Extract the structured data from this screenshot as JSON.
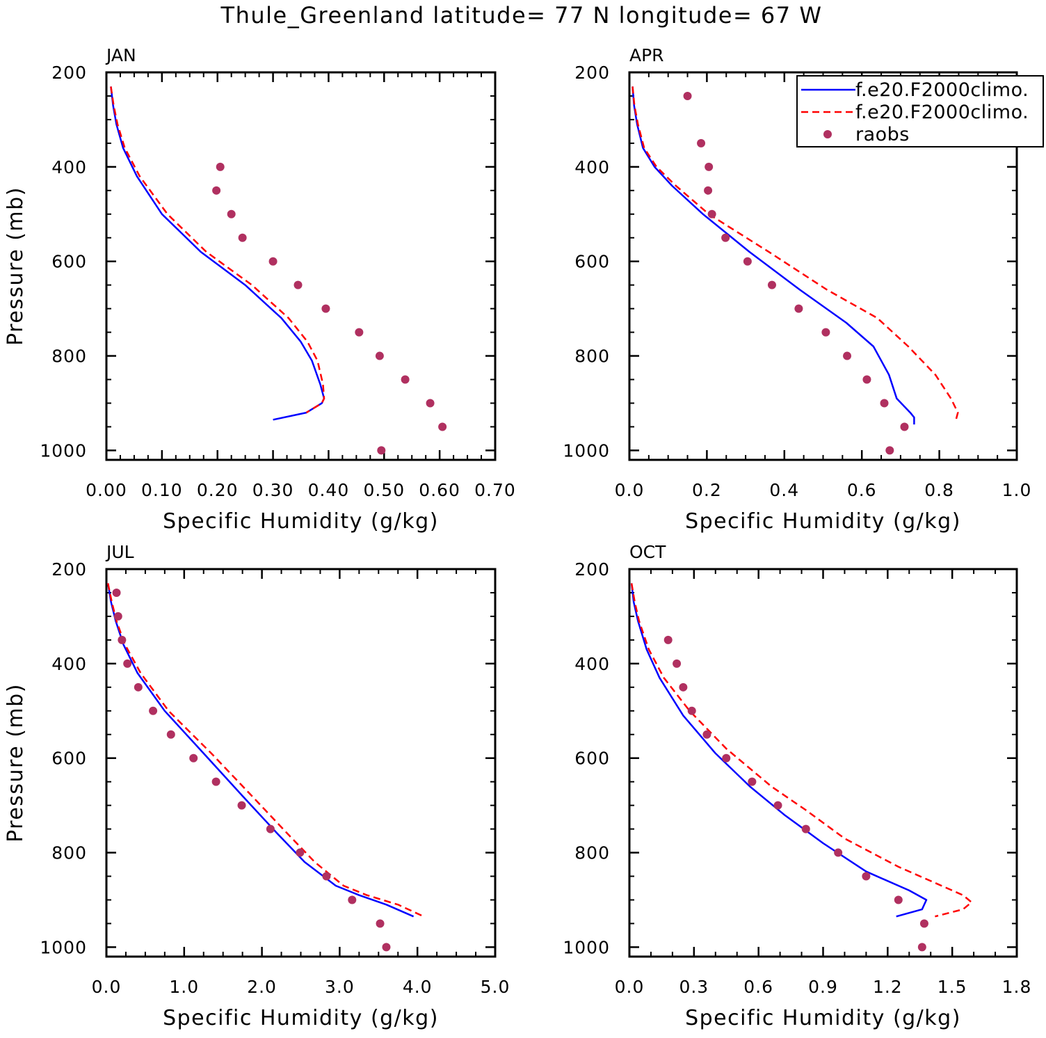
{
  "title": "Thule_Greenland  latitude= 77 N longitude= 67 W",
  "colors": {
    "model_a": "#0000ff",
    "model_b": "#ff0000",
    "raobs": "#b03060"
  },
  "legend": {
    "entries": [
      {
        "label": "f.e20.F2000climo.",
        "style": "solid",
        "color": "#0000ff"
      },
      {
        "label": "f.e20.F2000climo.",
        "style": "dashed",
        "color": "#ff0000"
      },
      {
        "label": "raobs",
        "style": "dots",
        "color": "#b03060"
      }
    ]
  },
  "chart_data": [
    {
      "type": "line",
      "title": "JAN",
      "xlabel": "Specific Humidity (g/kg)",
      "ylabel": "Pressure (mb)",
      "xlim": [
        0,
        0.7
      ],
      "ylim": [
        1020,
        200
      ],
      "xticks": [
        0,
        0.1,
        0.2,
        0.3,
        0.4,
        0.5,
        0.6,
        0.7
      ],
      "xtick_labels": [
        "0.00",
        "0.10",
        "0.20",
        "0.30",
        "0.40",
        "0.50",
        "0.60",
        "0.70"
      ],
      "xminor": 0.025,
      "yticks": [
        200,
        400,
        600,
        800,
        1000
      ],
      "ytick_labels": [
        "200",
        "400",
        "600",
        "800",
        "1000"
      ],
      "series": [
        {
          "name": "f.e20.F2000climo.",
          "style": "solid",
          "color": "#0000ff",
          "points": [
            [
              0.008,
              230
            ],
            [
              0.012,
              270
            ],
            [
              0.018,
              310
            ],
            [
              0.03,
              360
            ],
            [
              0.055,
              420
            ],
            [
              0.1,
              500
            ],
            [
              0.17,
              580
            ],
            [
              0.25,
              650
            ],
            [
              0.315,
              720
            ],
            [
              0.35,
              770
            ],
            [
              0.37,
              810
            ],
            [
              0.385,
              860
            ],
            [
              0.392,
              890
            ],
            [
              0.388,
              900
            ],
            [
              0.36,
              920
            ],
            [
              0.3,
              935
            ]
          ]
        },
        {
          "name": "f.e20.F2000climo.",
          "style": "dashed",
          "color": "#ff0000",
          "points": [
            [
              0.008,
              230
            ],
            [
              0.013,
              270
            ],
            [
              0.02,
              310
            ],
            [
              0.033,
              360
            ],
            [
              0.06,
              420
            ],
            [
              0.11,
              500
            ],
            [
              0.18,
              580
            ],
            [
              0.262,
              650
            ],
            [
              0.328,
              720
            ],
            [
              0.362,
              770
            ],
            [
              0.38,
              810
            ],
            [
              0.39,
              860
            ],
            [
              0.392,
              890
            ],
            [
              0.388,
              900
            ],
            [
              0.36,
              920
            ]
          ]
        },
        {
          "name": "raobs",
          "style": "dots",
          "color": "#b03060",
          "points": [
            [
              0.205,
              400
            ],
            [
              0.198,
              450
            ],
            [
              0.225,
              500
            ],
            [
              0.245,
              550
            ],
            [
              0.3,
              600
            ],
            [
              0.345,
              650
            ],
            [
              0.395,
              700
            ],
            [
              0.455,
              750
            ],
            [
              0.492,
              800
            ],
            [
              0.538,
              850
            ],
            [
              0.583,
              900
            ],
            [
              0.605,
              950
            ],
            [
              0.495,
              1000
            ]
          ]
        }
      ]
    },
    {
      "type": "line",
      "title": "APR",
      "xlabel": "Specific Humidity (g/kg)",
      "ylabel": "",
      "xlim": [
        0,
        1.0
      ],
      "ylim": [
        1020,
        200
      ],
      "xticks": [
        0,
        0.2,
        0.4,
        0.6,
        0.8,
        1.0
      ],
      "xtick_labels": [
        "0.0",
        "0.2",
        "0.4",
        "0.6",
        "0.8",
        "1.0"
      ],
      "xminor": 0.05,
      "yticks": [
        200,
        400,
        600,
        800,
        1000
      ],
      "ytick_labels": [
        "200",
        "400",
        "600",
        "800",
        "1000"
      ],
      "series": [
        {
          "name": "f.e20.F2000climo.",
          "style": "solid",
          "color": "#0000ff",
          "points": [
            [
              0.008,
              230
            ],
            [
              0.012,
              270
            ],
            [
              0.02,
              310
            ],
            [
              0.035,
              360
            ],
            [
              0.065,
              400
            ],
            [
              0.11,
              440
            ],
            [
              0.19,
              500
            ],
            [
              0.31,
              580
            ],
            [
              0.44,
              660
            ],
            [
              0.56,
              730
            ],
            [
              0.63,
              780
            ],
            [
              0.67,
              840
            ],
            [
              0.69,
              890
            ],
            [
              0.725,
              920
            ],
            [
              0.735,
              930
            ],
            [
              0.735,
              945
            ]
          ]
        },
        {
          "name": "f.e20.F2000climo.",
          "style": "dashed",
          "color": "#ff0000",
          "points": [
            [
              0.008,
              230
            ],
            [
              0.013,
              270
            ],
            [
              0.022,
              310
            ],
            [
              0.038,
              360
            ],
            [
              0.07,
              400
            ],
            [
              0.12,
              440
            ],
            [
              0.205,
              500
            ],
            [
              0.36,
              580
            ],
            [
              0.51,
              660
            ],
            [
              0.64,
              720
            ],
            [
              0.72,
              780
            ],
            [
              0.79,
              840
            ],
            [
              0.83,
              890
            ],
            [
              0.848,
              920
            ],
            [
              0.843,
              935
            ]
          ]
        },
        {
          "name": "raobs",
          "style": "dots",
          "color": "#b03060",
          "points": [
            [
              0.15,
              250
            ],
            [
              0.185,
              350
            ],
            [
              0.205,
              400
            ],
            [
              0.203,
              450
            ],
            [
              0.213,
              500
            ],
            [
              0.248,
              550
            ],
            [
              0.305,
              600
            ],
            [
              0.368,
              650
            ],
            [
              0.437,
              700
            ],
            [
              0.507,
              750
            ],
            [
              0.562,
              800
            ],
            [
              0.613,
              850
            ],
            [
              0.658,
              900
            ],
            [
              0.71,
              950
            ],
            [
              0.672,
              1000
            ]
          ]
        }
      ]
    },
    {
      "type": "line",
      "title": "JUL",
      "xlabel": "Specific Humidity (g/kg)",
      "ylabel": "Pressure (mb)",
      "xlim": [
        0,
        5.0
      ],
      "ylim": [
        1020,
        200
      ],
      "xticks": [
        0,
        1,
        2,
        3,
        4,
        5
      ],
      "xtick_labels": [
        "0.0",
        "1.0",
        "2.0",
        "3.0",
        "4.0",
        "5.0"
      ],
      "xminor": 0.25,
      "yticks": [
        200,
        400,
        600,
        800,
        1000
      ],
      "ytick_labels": [
        "200",
        "400",
        "600",
        "800",
        "1000"
      ],
      "series": [
        {
          "name": "f.e20.F2000climo.",
          "style": "solid",
          "color": "#0000ff",
          "points": [
            [
              0.02,
              230
            ],
            [
              0.06,
              270
            ],
            [
              0.12,
              310
            ],
            [
              0.22,
              360
            ],
            [
              0.4,
              420
            ],
            [
              0.75,
              500
            ],
            [
              1.25,
              590
            ],
            [
              1.75,
              680
            ],
            [
              2.2,
              760
            ],
            [
              2.55,
              820
            ],
            [
              2.95,
              870
            ],
            [
              3.25,
              890
            ],
            [
              3.6,
              910
            ],
            [
              3.95,
              935
            ]
          ]
        },
        {
          "name": "f.e20.F2000climo.",
          "style": "dashed",
          "color": "#ff0000",
          "points": [
            [
              0.02,
              230
            ],
            [
              0.07,
              270
            ],
            [
              0.13,
              310
            ],
            [
              0.24,
              360
            ],
            [
              0.44,
              420
            ],
            [
              0.8,
              500
            ],
            [
              1.35,
              590
            ],
            [
              1.87,
              680
            ],
            [
              2.33,
              760
            ],
            [
              2.68,
              820
            ],
            [
              3.05,
              870
            ],
            [
              3.35,
              890
            ],
            [
              3.75,
              910
            ],
            [
              4.08,
              935
            ]
          ]
        },
        {
          "name": "raobs",
          "style": "dots",
          "color": "#b03060",
          "points": [
            [
              0.13,
              250
            ],
            [
              0.15,
              300
            ],
            [
              0.2,
              350
            ],
            [
              0.27,
              400
            ],
            [
              0.41,
              450
            ],
            [
              0.6,
              500
            ],
            [
              0.83,
              550
            ],
            [
              1.12,
              600
            ],
            [
              1.41,
              650
            ],
            [
              1.74,
              700
            ],
            [
              2.11,
              750
            ],
            [
              2.49,
              800
            ],
            [
              2.83,
              850
            ],
            [
              3.16,
              900
            ],
            [
              3.52,
              950
            ],
            [
              3.6,
              1000
            ]
          ]
        }
      ]
    },
    {
      "type": "line",
      "title": "OCT",
      "xlabel": "Specific Humidity (g/kg)",
      "ylabel": "",
      "xlim": [
        0,
        1.8
      ],
      "ylim": [
        1020,
        200
      ],
      "xticks": [
        0,
        0.3,
        0.6,
        0.9,
        1.2,
        1.5,
        1.8
      ],
      "xtick_labels": [
        "0.0",
        "0.3",
        "0.6",
        "0.9",
        "1.2",
        "1.5",
        "1.8"
      ],
      "xminor": 0.1,
      "yticks": [
        200,
        400,
        600,
        800,
        1000
      ],
      "ytick_labels": [
        "200",
        "400",
        "600",
        "800",
        "1000"
      ],
      "series": [
        {
          "name": "f.e20.F2000climo.",
          "style": "solid",
          "color": "#0000ff",
          "points": [
            [
              0.01,
              230
            ],
            [
              0.02,
              270
            ],
            [
              0.04,
              310
            ],
            [
              0.08,
              370
            ],
            [
              0.14,
              430
            ],
            [
              0.25,
              510
            ],
            [
              0.4,
              590
            ],
            [
              0.56,
              660
            ],
            [
              0.72,
              720
            ],
            [
              0.9,
              780
            ],
            [
              1.1,
              840
            ],
            [
              1.3,
              880
            ],
            [
              1.38,
              900
            ],
            [
              1.36,
              920
            ],
            [
              1.24,
              935
            ]
          ]
        },
        {
          "name": "f.e20.F2000climo.",
          "style": "dashed",
          "color": "#ff0000",
          "points": [
            [
              0.01,
              230
            ],
            [
              0.025,
              270
            ],
            [
              0.045,
              310
            ],
            [
              0.09,
              370
            ],
            [
              0.16,
              430
            ],
            [
              0.28,
              500
            ],
            [
              0.45,
              580
            ],
            [
              0.66,
              660
            ],
            [
              0.82,
              710
            ],
            [
              1.0,
              770
            ],
            [
              1.25,
              830
            ],
            [
              1.45,
              870
            ],
            [
              1.55,
              890
            ],
            [
              1.59,
              905
            ],
            [
              1.55,
              920
            ],
            [
              1.42,
              935
            ]
          ]
        },
        {
          "name": "raobs",
          "style": "dots",
          "color": "#b03060",
          "points": [
            [
              0.18,
              350
            ],
            [
              0.22,
              400
            ],
            [
              0.25,
              450
            ],
            [
              0.29,
              500
            ],
            [
              0.36,
              550
            ],
            [
              0.45,
              600
            ],
            [
              0.57,
              650
            ],
            [
              0.69,
              700
            ],
            [
              0.82,
              750
            ],
            [
              0.97,
              800
            ],
            [
              1.1,
              850
            ],
            [
              1.25,
              900
            ],
            [
              1.37,
              950
            ],
            [
              1.36,
              1000
            ]
          ]
        }
      ]
    }
  ]
}
